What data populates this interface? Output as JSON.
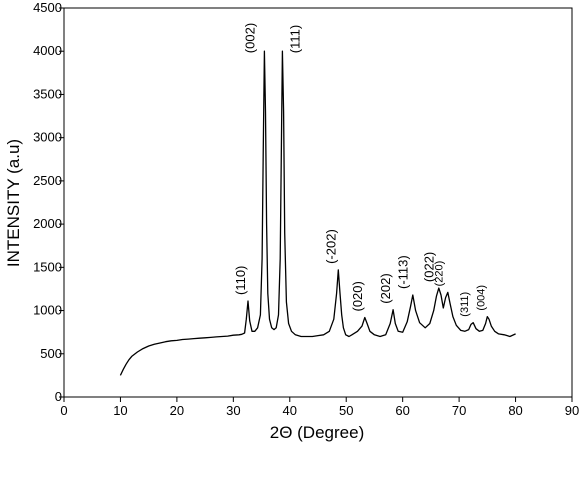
{
  "chart_data": {
    "type": "line",
    "title": "",
    "xlabel": "2Θ (Degree)",
    "ylabel": "INTENSITY (a.u)",
    "xlim": [
      0,
      90
    ],
    "ylim": [
      0,
      4500
    ],
    "xticks": [
      0,
      10,
      20,
      30,
      40,
      50,
      60,
      70,
      80,
      90
    ],
    "yticks": [
      0,
      500,
      1000,
      1500,
      2000,
      2500,
      3000,
      3500,
      4000,
      4500
    ],
    "grid": false,
    "legend": "none",
    "line_color": "#000000",
    "series": [
      {
        "x": [
          10,
          10.5,
          11,
          11.5,
          12,
          13,
          14,
          15,
          16,
          17,
          18,
          19,
          20,
          21,
          22,
          23,
          24,
          25,
          26,
          27,
          28,
          29,
          30,
          31,
          31.5,
          32,
          32.3,
          32.6,
          32.9,
          33.3,
          33.8,
          34.3,
          34.8,
          35.1,
          35.3,
          35.5,
          35.7,
          35.9,
          36.1,
          36.4,
          36.8,
          37.2,
          37.6,
          38,
          38.3,
          38.5,
          38.7,
          38.9,
          39.1,
          39.4,
          39.8,
          40.3,
          41,
          42,
          43,
          44,
          45,
          46,
          47,
          47.8,
          48.3,
          48.6,
          48.9,
          49.2,
          49.5,
          49.9,
          50.5,
          51,
          52,
          52.8,
          53.3,
          53.7,
          54.2,
          55,
          56,
          57,
          57.8,
          58.3,
          58.7,
          59.2,
          60,
          60.8,
          61.4,
          61.8,
          62.3,
          63,
          64,
          64.8,
          65.5,
          66,
          66.4,
          66.8,
          67.2,
          67.6,
          68,
          68.4,
          68.9,
          69.5,
          70.3,
          71,
          71.7,
          72.1,
          72.5,
          73,
          73.6,
          74.2,
          74.7,
          75,
          75.3,
          75.7,
          76.3,
          77,
          78,
          79,
          80
        ],
        "y": [
          250,
          320,
          380,
          430,
          470,
          520,
          560,
          590,
          610,
          625,
          640,
          650,
          655,
          665,
          670,
          675,
          680,
          685,
          690,
          695,
          700,
          705,
          715,
          720,
          725,
          740,
          900,
          1110,
          880,
          760,
          760,
          800,
          950,
          1600,
          2800,
          4000,
          3300,
          2000,
          1200,
          900,
          800,
          780,
          800,
          950,
          1600,
          2800,
          4000,
          3300,
          1900,
          1100,
          850,
          760,
          720,
          700,
          700,
          700,
          710,
          720,
          760,
          900,
          1200,
          1470,
          1200,
          950,
          800,
          720,
          700,
          720,
          760,
          820,
          920,
          850,
          760,
          720,
          700,
          720,
          850,
          1010,
          850,
          760,
          750,
          870,
          1050,
          1180,
          1000,
          860,
          800,
          850,
          1000,
          1170,
          1260,
          1180,
          1030,
          1150,
          1210,
          1080,
          930,
          830,
          770,
          760,
          780,
          840,
          860,
          790,
          760,
          770,
          850,
          930,
          900,
          820,
          760,
          730,
          720,
          700,
          730
        ]
      }
    ],
    "annotations": [
      {
        "text": "(110)",
        "x": 32.6,
        "y": 1110
      },
      {
        "text": "(002)",
        "x": 35.5,
        "y": 4000
      },
      {
        "text": "(111)",
        "x": 38.7,
        "y": 4000
      },
      {
        "text": "(-202)",
        "x": 48.6,
        "y": 1470
      },
      {
        "text": "(020)",
        "x": 53.3,
        "y": 920
      },
      {
        "text": "(202)",
        "x": 58.3,
        "y": 1010
      },
      {
        "text": "(-113)",
        "x": 61.4,
        "y": 1180
      },
      {
        "text": "(022)",
        "x": 66,
        "y": 1260
      },
      {
        "text": "(220)",
        "x": 67.6,
        "y": 1210
      },
      {
        "text": "(311)",
        "x": 72.1,
        "y": 860
      },
      {
        "text": "(004)",
        "x": 75,
        "y": 930
      }
    ]
  }
}
